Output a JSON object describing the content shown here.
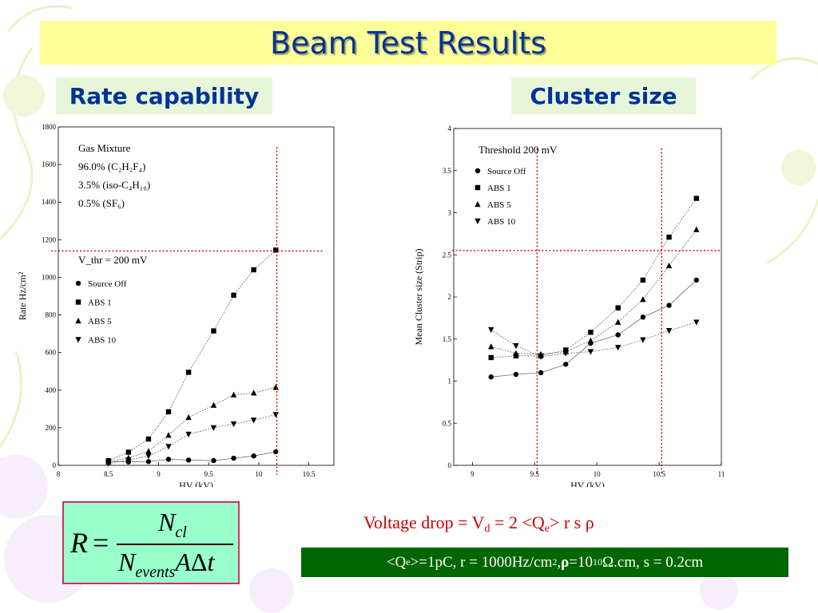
{
  "title": "Beam Test Results",
  "rate_label": "Rate capability",
  "cluster_label": "Cluster size",
  "formula": {
    "lhs": "R",
    "equals": "=",
    "numerator": "N",
    "numerator_sub": "cl",
    "denominator": "N",
    "denominator_sub": "events",
    "denominator_rest": "A",
    "delta": "Δ",
    "t": "t"
  },
  "voltage_drop": {
    "prefix": "Voltage drop = V",
    "sub_d": "d",
    "middle": " = 2 <Q",
    "sub_e": "e",
    "suffix": "> r s ρ"
  },
  "params": {
    "p1": "<Q",
    "p1_sub": "e",
    "p2": ">=1pC, r = 1000Hz/cm",
    "p2_sup": "2",
    "p3": ", ",
    "rho": "ρ",
    "p4": " =10",
    "p4_sup": "10",
    "p5": "Ω.cm, s = 0.2cm"
  },
  "chart_data": [
    {
      "type": "scatter",
      "xlabel": "HV (kV)",
      "ylabel": "Rate  Hz/cm²",
      "xlim": [
        8,
        10.75
      ],
      "ylim": [
        0,
        1800
      ],
      "xticks": [
        8,
        8.5,
        9,
        9.5,
        10,
        10.5
      ],
      "yticks": [
        0,
        200,
        400,
        600,
        800,
        1000,
        1200,
        1400,
        1600,
        1800
      ],
      "grid": false,
      "annotations": {
        "gas_title": "Gas Mixture",
        "gas_lines": [
          "96.0% (C₂H₂F₄)",
          "3.5% (iso-C₄H₁₀)",
          "0.5% (SF₆)"
        ],
        "threshold": "V_thr =  200 mV"
      },
      "reference_lines": {
        "x": 10.18,
        "y": 1140,
        "color": "#cc0000",
        "style": "dotted"
      },
      "x": [
        8.5,
        8.7,
        8.9,
        9.1,
        9.3,
        9.55,
        9.75,
        9.95,
        10.17
      ],
      "series": [
        {
          "name": "Source Off",
          "marker": "circle",
          "line": "solid",
          "values": [
            22,
            18,
            20,
            32,
            28,
            25,
            38,
            50,
            72
          ]
        },
        {
          "name": "ABS 1",
          "marker": "square",
          "line": "dashed",
          "values": [
            25,
            70,
            140,
            285,
            495,
            715,
            905,
            1040,
            1145
          ]
        },
        {
          "name": "ABS 5",
          "marker": "triangle-up",
          "line": "dashed",
          "values": [
            18,
            40,
            75,
            160,
            255,
            320,
            375,
            385,
            415
          ]
        },
        {
          "name": "ABS 10",
          "marker": "triangle-down",
          "line": "dashed",
          "values": [
            10,
            28,
            50,
            100,
            165,
            200,
            220,
            240,
            270
          ]
        }
      ]
    },
    {
      "type": "scatter",
      "xlabel": "HV (kV)",
      "ylabel": "Mean Cluster size (Strip)",
      "xlim": [
        8.85,
        11
      ],
      "ylim": [
        0,
        4
      ],
      "xticks": [
        9,
        9.5,
        10,
        10.5,
        11
      ],
      "yticks": [
        0,
        0.5,
        1,
        1.5,
        2,
        2.5,
        3,
        3.5,
        4
      ],
      "grid": false,
      "annotations": {
        "threshold": "Threshold 200 mV"
      },
      "reference_lines": {
        "x": [
          9.52,
          10.52
        ],
        "y": 2.55,
        "color": "#cc0000",
        "style": "dotted"
      },
      "x": [
        9.15,
        9.35,
        9.55,
        9.75,
        9.95,
        10.17,
        10.37,
        10.58,
        10.8
      ],
      "series": [
        {
          "name": "Source Off",
          "marker": "circle",
          "line": "solid",
          "values": [
            1.05,
            1.08,
            1.1,
            1.2,
            1.45,
            1.55,
            1.76,
            1.9,
            2.2
          ]
        },
        {
          "name": "ABS 1",
          "marker": "square",
          "line": "dashed",
          "values": [
            1.28,
            1.3,
            1.3,
            1.37,
            1.58,
            1.87,
            2.2,
            2.71,
            3.17
          ]
        },
        {
          "name": "ABS 5",
          "marker": "triangle-up",
          "line": "dashed",
          "values": [
            1.41,
            1.33,
            1.32,
            1.35,
            1.48,
            1.7,
            1.97,
            2.37,
            2.8
          ]
        },
        {
          "name": "ABS 10",
          "marker": "triangle-down",
          "line": "dashed",
          "values": [
            1.61,
            1.42,
            1.29,
            1.33,
            1.35,
            1.4,
            1.49,
            1.6,
            1.7
          ]
        }
      ]
    }
  ]
}
